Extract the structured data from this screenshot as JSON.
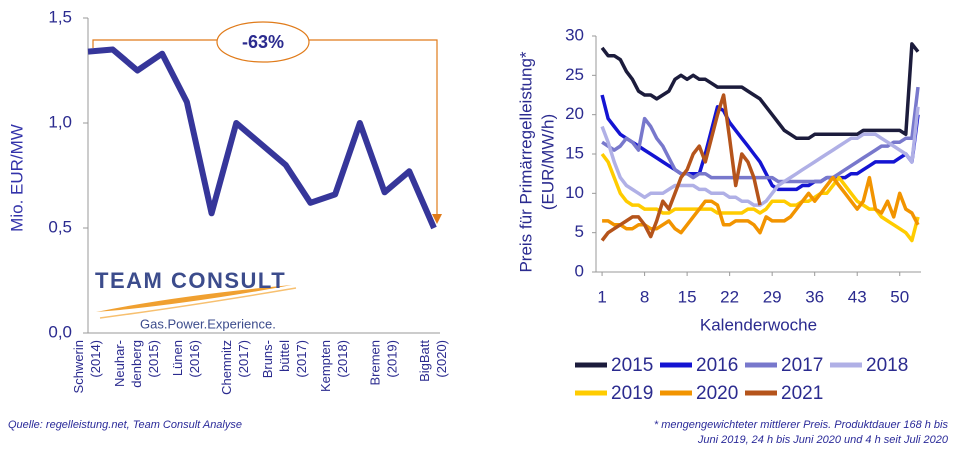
{
  "chart_data": [
    {
      "type": "line",
      "ylabel": "Mio. EUR/MW",
      "color": "#36369a",
      "categories": [
        [
          "Schwerin",
          "(2014)"
        ],
        null,
        [
          "Neuhar-",
          "denberg",
          "(2015)"
        ],
        null,
        [
          "Lünen",
          "(2016)"
        ],
        null,
        [
          "Chemnitz",
          "(2017)"
        ],
        null,
        [
          "Bruns-",
          "büttel",
          "(2017)"
        ],
        null,
        [
          "Kempten",
          "(2018)"
        ],
        null,
        [
          "Bremen",
          "(2019)"
        ],
        null,
        [
          "BigBatt",
          "(2020)"
        ]
      ],
      "values": [
        1.34,
        1.35,
        1.25,
        1.33,
        1.1,
        0.57,
        1.0,
        0.9,
        0.8,
        0.62,
        0.66,
        1.0,
        0.67,
        0.77,
        0.5
      ],
      "ylim": [
        0,
        1.5
      ],
      "yticks": [
        {
          "value": 0,
          "label": "0,0"
        },
        {
          "value": 0.5,
          "label": "0,5"
        },
        {
          "value": 1,
          "label": "1,0"
        },
        {
          "value": 1.5,
          "label": "1,5"
        }
      ],
      "annotation": "-63%",
      "annotation_color": "#e07b1a"
    },
    {
      "type": "line",
      "xlabel": "Kalenderwoche",
      "ylabel": [
        "Preis für Primärregelleistung*",
        "(EUR/MW/h)"
      ],
      "x": [
        1,
        2,
        3,
        4,
        5,
        6,
        7,
        8,
        9,
        10,
        11,
        12,
        13,
        14,
        15,
        16,
        17,
        18,
        19,
        20,
        21,
        22,
        23,
        24,
        25,
        26,
        27,
        28,
        29,
        30,
        31,
        32,
        33,
        34,
        35,
        36,
        37,
        38,
        39,
        40,
        41,
        42,
        43,
        44,
        45,
        46,
        47,
        48,
        49,
        50,
        51,
        52,
        53
      ],
      "xlim": [
        0,
        53.5
      ],
      "xticks": [
        1,
        8,
        15,
        22,
        29,
        36,
        43,
        50
      ],
      "ylim": [
        0,
        30
      ],
      "yticks": [
        0,
        5,
        10,
        15,
        20,
        25,
        30
      ],
      "series": [
        {
          "name": "2015",
          "color": "#1c1c3c",
          "values": [
            28.5,
            27.5,
            27.5,
            27,
            25.5,
            24.5,
            23,
            22.5,
            22.5,
            22,
            22.5,
            23,
            24.5,
            25,
            24.5,
            25,
            24.5,
            24.5,
            24,
            23.5,
            23.5,
            23.5,
            23.5,
            23.5,
            23,
            22.5,
            22,
            21,
            20,
            19,
            18,
            17.5,
            17,
            17,
            17,
            17.5,
            17.5,
            17.5,
            17.5,
            17.5,
            17.5,
            17.5,
            17.5,
            18,
            18,
            18,
            18,
            18,
            18,
            18,
            17.5,
            29,
            28
          ]
        },
        {
          "name": "2016",
          "color": "#1414d2",
          "values": [
            22.5,
            19.5,
            18.5,
            17.5,
            17,
            16.5,
            16,
            15.5,
            15,
            14.5,
            14,
            13.5,
            13,
            12.5,
            12.5,
            12.5,
            12.5,
            15,
            18,
            21,
            20.5,
            19,
            18,
            17,
            16,
            15,
            14,
            12.5,
            11,
            10.5,
            10.5,
            10.5,
            10.5,
            11,
            11,
            11.5,
            11.5,
            12,
            12,
            12,
            12,
            12.5,
            12.5,
            13,
            13.5,
            14,
            14,
            14,
            14,
            14.5,
            15,
            14,
            20
          ]
        },
        {
          "name": "2017",
          "color": "#7878cc",
          "values": [
            16.5,
            16,
            15.5,
            16,
            17,
            16.5,
            15.5,
            19.5,
            18.5,
            17,
            16,
            14.5,
            13,
            12.5,
            12.5,
            12,
            12.5,
            12.5,
            12,
            12,
            12,
            12,
            12,
            12,
            12,
            12,
            12,
            12,
            12,
            11.5,
            11.5,
            11.5,
            11.5,
            11.5,
            11.5,
            11.5,
            11.5,
            12,
            12,
            12.5,
            13,
            13.5,
            14,
            14.5,
            15,
            15.5,
            16,
            16,
            16.5,
            16.5,
            17,
            17,
            23.5
          ]
        },
        {
          "name": "2018",
          "color": "#b0b0e6",
          "values": [
            18.5,
            16.5,
            14,
            12,
            11,
            10.5,
            10,
            9.5,
            10,
            10,
            10,
            10.5,
            11,
            11,
            11,
            11,
            10.5,
            10.5,
            10,
            10,
            10,
            9.5,
            9.5,
            9,
            9,
            8.5,
            8.5,
            9,
            10,
            11,
            11.5,
            12,
            12.5,
            13,
            13.5,
            14,
            14.5,
            15,
            15.5,
            16,
            16.5,
            17,
            17,
            17.5,
            17.5,
            17.5,
            17,
            16.5,
            16,
            15.5,
            15,
            14,
            21
          ]
        },
        {
          "name": "2019",
          "color": "#ffcc00",
          "values": [
            15,
            14,
            12,
            10,
            9,
            8.5,
            8.5,
            8,
            8,
            8,
            7.5,
            7.5,
            8,
            8,
            8,
            8,
            8,
            8,
            8,
            7.5,
            7.5,
            7.5,
            7.5,
            7.5,
            8,
            8,
            7.5,
            8,
            9,
            9,
            9,
            8.5,
            8.5,
            9,
            9,
            9.5,
            10,
            10,
            11,
            12,
            11,
            10,
            9,
            8.5,
            8,
            8,
            7,
            6.5,
            6,
            5.5,
            5,
            4,
            7
          ]
        },
        {
          "name": "2020",
          "color": "#f29400",
          "values": [
            6.5,
            6.5,
            6,
            6,
            5.5,
            5.5,
            6,
            6,
            5.5,
            5.5,
            6,
            6.5,
            5.5,
            5,
            6,
            7,
            8,
            9,
            9,
            8.5,
            6,
            6,
            6.5,
            6.5,
            6.5,
            6,
            5,
            7,
            6.5,
            6.5,
            6.5,
            7,
            8,
            9,
            10,
            9,
            10,
            11,
            12,
            11,
            10,
            9,
            8,
            9,
            12,
            8,
            7.5,
            9,
            7,
            10,
            8,
            7.5,
            6
          ]
        },
        {
          "name": "2021",
          "color": "#b5541b",
          "values": [
            4,
            5,
            5.5,
            6,
            6.5,
            7,
            7,
            6,
            4.5,
            6.5,
            9,
            8,
            10,
            12,
            13,
            15,
            16,
            14,
            17,
            20,
            22.5,
            17,
            11,
            15,
            14,
            12,
            8.5,
            null,
            null,
            null,
            null,
            null,
            null,
            null,
            null,
            null,
            null,
            null,
            null,
            null,
            null,
            null,
            null,
            null,
            null,
            null,
            null,
            null,
            null,
            null,
            null,
            null,
            null
          ]
        }
      ]
    }
  ],
  "logo": {
    "name": "TEAM CONSULT",
    "slogan": "Gas.Power.Experience."
  },
  "source": "Quelle: regelleistung.net, Team Consult Analyse",
  "footnote": [
    "* mengengewichteter  mittlerer Preis. Produktdauer 168 h bis",
    "Juni 2019, 24 h bis Juni 2020 und 4 h seit Juli 2020"
  ]
}
